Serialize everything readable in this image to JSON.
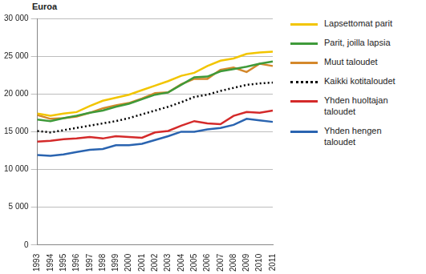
{
  "chart_data": {
    "type": "line",
    "y_label": "Euroa",
    "categories": [
      "1993",
      "1994",
      "1995",
      "1996",
      "1997",
      "1998",
      "1999",
      "2000",
      "2001",
      "2002",
      "2003",
      "2004",
      "2005",
      "2006",
      "2007",
      "2008",
      "2009",
      "2010",
      "2011"
    ],
    "series": [
      {
        "name": "Lapsettomat parit",
        "color": "#f2c500",
        "line_style": "solid",
        "values": [
          17400,
          17100,
          17400,
          17600,
          18400,
          19100,
          19500,
          19900,
          20500,
          21100,
          21700,
          22400,
          22800,
          23700,
          24400,
          24700,
          25300,
          25500,
          25600
        ]
      },
      {
        "name": "Parit, joilla lapsia",
        "color": "#3f9a3a",
        "line_style": "solid",
        "values": [
          16600,
          16400,
          16800,
          17100,
          17500,
          17800,
          18300,
          18700,
          19300,
          19900,
          20200,
          21200,
          22200,
          22300,
          23000,
          23300,
          23600,
          24000,
          24300
        ]
      },
      {
        "name": "Muut taloudet",
        "color": "#d4882b",
        "line_style": "solid",
        "values": [
          17200,
          16700,
          16800,
          17000,
          17500,
          18100,
          18500,
          18800,
          19400,
          20100,
          20200,
          21300,
          22000,
          22000,
          23200,
          23500,
          22900,
          24000,
          23700
        ]
      },
      {
        "name": "Kaikki kotitaloudet",
        "color": "#000000",
        "line_style": "dotted",
        "values": [
          15100,
          14900,
          15200,
          15500,
          15800,
          16100,
          16400,
          16800,
          17300,
          17800,
          18300,
          18900,
          19600,
          19900,
          20400,
          20800,
          21200,
          21400,
          21500
        ]
      },
      {
        "name": "Yhden huoltajan taloudet",
        "color": "#d42a2a",
        "line_style": "solid",
        "values": [
          13700,
          13800,
          14000,
          14100,
          14300,
          14100,
          14400,
          14300,
          14200,
          14900,
          15100,
          15800,
          16400,
          16100,
          16000,
          17100,
          17600,
          17500,
          17800
        ]
      },
      {
        "name": "Yhden hengen taloudet",
        "color": "#2a64b0",
        "line_style": "solid",
        "values": [
          11900,
          11800,
          12000,
          12300,
          12600,
          12700,
          13200,
          13200,
          13400,
          13900,
          14400,
          15000,
          15000,
          15300,
          15500,
          15900,
          16700,
          16500,
          16300
        ]
      }
    ],
    "ylim": [
      0,
      30000
    ],
    "yticks": [
      0,
      {
        "value": 5000,
        "label": "5 000"
      },
      {
        "value": 10000,
        "label": "10 000"
      },
      {
        "value": 15000,
        "label": "15 000"
      },
      {
        "value": 20000,
        "label": "20 000"
      },
      {
        "value": 25000,
        "label": "25 000"
      },
      {
        "value": 30000,
        "label": "30 000"
      }
    ],
    "grid": true,
    "legend": "right"
  }
}
